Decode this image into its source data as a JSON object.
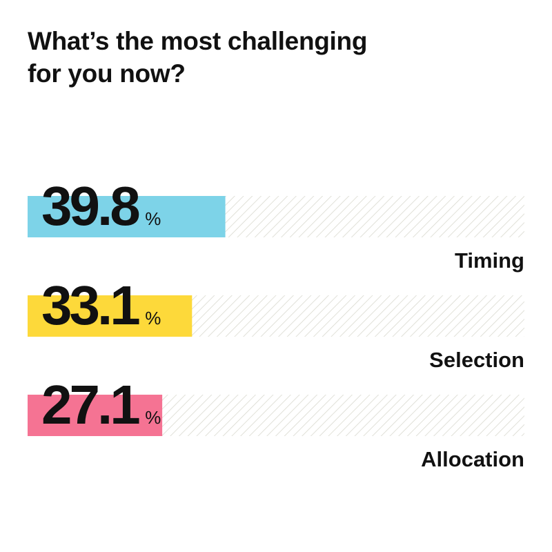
{
  "title_lines": [
    "What’s the most challenging",
    "for you now?"
  ],
  "chart_data": {
    "type": "bar",
    "orientation": "horizontal",
    "title": "What’s the most challenging for you now?",
    "categories": [
      "Timing",
      "Selection",
      "Allocation"
    ],
    "values": [
      39.8,
      33.1,
      27.1
    ],
    "value_labels": [
      "39.8",
      "33.1",
      "27.1"
    ],
    "unit": "%",
    "xlim": [
      0,
      100
    ],
    "colors": [
      "#7dd3e8",
      "#fdd93a",
      "#f57393"
    ],
    "track_pattern": "diagonal-hatch",
    "track_color": "#d9d9cf",
    "grid": false,
    "legend": "none"
  }
}
